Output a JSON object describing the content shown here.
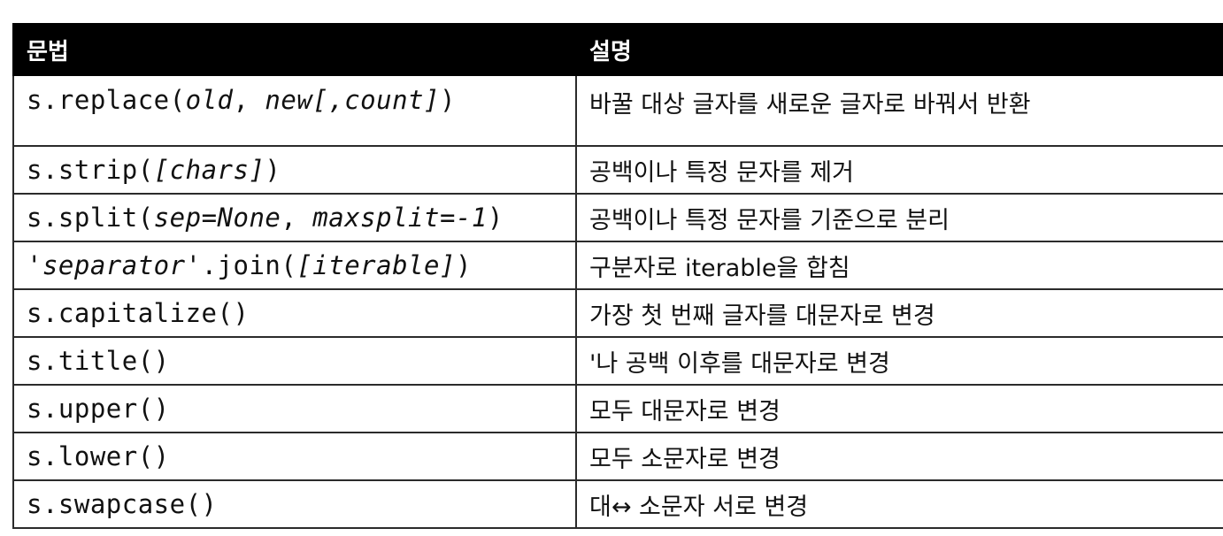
{
  "header": {
    "col_syntax": "문법",
    "col_desc": "설명"
  },
  "rows": [
    {
      "syntax": [
        {
          "text": "s.replace(",
          "italic": false
        },
        {
          "text": "old",
          "italic": true
        },
        {
          "text": ", ",
          "italic": false
        },
        {
          "text": "new[,count]",
          "italic": true
        },
        {
          "text": ")",
          "italic": false
        }
      ],
      "desc": "바꿀 대상 글자를 새로운 글자로 바꿔서 반환"
    },
    {
      "syntax": [
        {
          "text": "s.strip(",
          "italic": false
        },
        {
          "text": "[chars]",
          "italic": true
        },
        {
          "text": ")",
          "italic": false
        }
      ],
      "desc": "공백이나 특정 문자를 제거"
    },
    {
      "syntax": [
        {
          "text": "s.split(",
          "italic": false
        },
        {
          "text": "sep=None",
          "italic": true
        },
        {
          "text": ", ",
          "italic": false
        },
        {
          "text": "maxsplit=-1",
          "italic": true
        },
        {
          "text": ")",
          "italic": false
        }
      ],
      "desc": "공백이나 특정 문자를 기준으로 분리"
    },
    {
      "syntax": [
        {
          "text": "'",
          "italic": false
        },
        {
          "text": "separator",
          "italic": true
        },
        {
          "text": "'.join(",
          "italic": false
        },
        {
          "text": "[iterable]",
          "italic": true
        },
        {
          "text": ")",
          "italic": false
        }
      ],
      "desc": "구분자로 iterable을 합침"
    },
    {
      "syntax": [
        {
          "text": "s.capitalize()",
          "italic": false
        }
      ],
      "desc": "가장 첫 번째 글자를 대문자로 변경"
    },
    {
      "syntax": [
        {
          "text": "s.title()",
          "italic": false
        }
      ],
      "desc": "'나 공백 이후를 대문자로 변경"
    },
    {
      "syntax": [
        {
          "text": "s.upper()",
          "italic": false
        }
      ],
      "desc": "모두 대문자로 변경"
    },
    {
      "syntax": [
        {
          "text": "s.lower()",
          "italic": false
        }
      ],
      "desc": "모두 소문자로 변경"
    },
    {
      "syntax": [
        {
          "text": "s.swapcase()",
          "italic": false
        }
      ],
      "desc": "대↔ 소문자 서로 변경"
    }
  ]
}
